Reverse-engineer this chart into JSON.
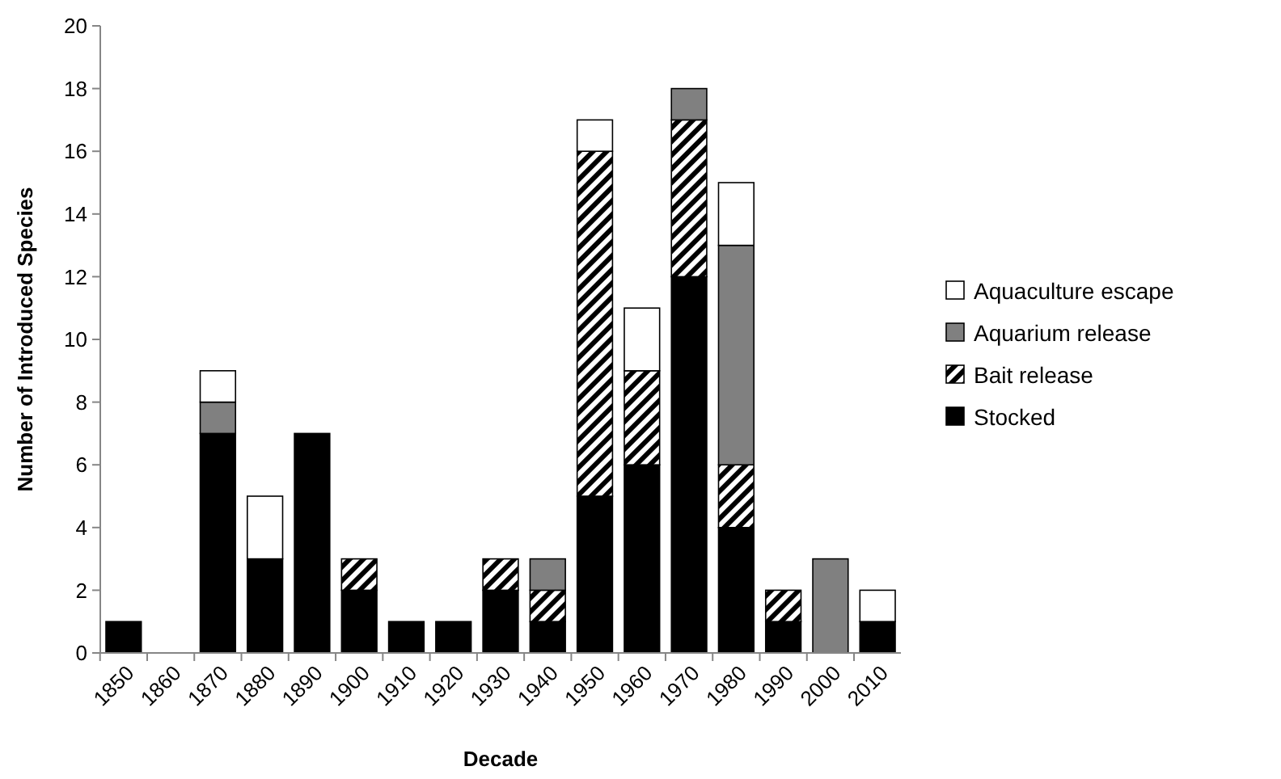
{
  "chart_data": {
    "type": "bar",
    "stacked": true,
    "xlabel": "Decade",
    "ylabel": "Number of Introduced Species",
    "categories": [
      "1850",
      "1860",
      "1870",
      "1880",
      "1890",
      "1900",
      "1910",
      "1920",
      "1930",
      "1940",
      "1950",
      "1960",
      "1970",
      "1980",
      "1990",
      "2000",
      "2010"
    ],
    "series": [
      {
        "name": "Stocked",
        "color": "#000000",
        "values": [
          1,
          0,
          7,
          3,
          7,
          2,
          1,
          1,
          2,
          1,
          5,
          6,
          12,
          4,
          1,
          0,
          1
        ]
      },
      {
        "name": "Bait release",
        "color": "#000000",
        "values": [
          0,
          0,
          0,
          0,
          0,
          1,
          0,
          0,
          1,
          1,
          11,
          3,
          5,
          2,
          1,
          0,
          0
        ]
      },
      {
        "name": "Aquarium release",
        "color": "#808080",
        "values": [
          0,
          0,
          1,
          0,
          0,
          0,
          0,
          0,
          0,
          1,
          0,
          0,
          1,
          7,
          0,
          3,
          0
        ]
      },
      {
        "name": "Aquaculture escape",
        "color": "#ffffff",
        "values": [
          0,
          0,
          1,
          2,
          0,
          0,
          0,
          0,
          0,
          0,
          1,
          2,
          0,
          2,
          0,
          0,
          1
        ]
      }
    ],
    "ylim": [
      0,
      20
    ],
    "yticks": [
      0,
      2,
      4,
      6,
      8,
      10,
      12,
      14,
      16,
      18,
      20
    ],
    "grid": false,
    "legend": "right"
  }
}
